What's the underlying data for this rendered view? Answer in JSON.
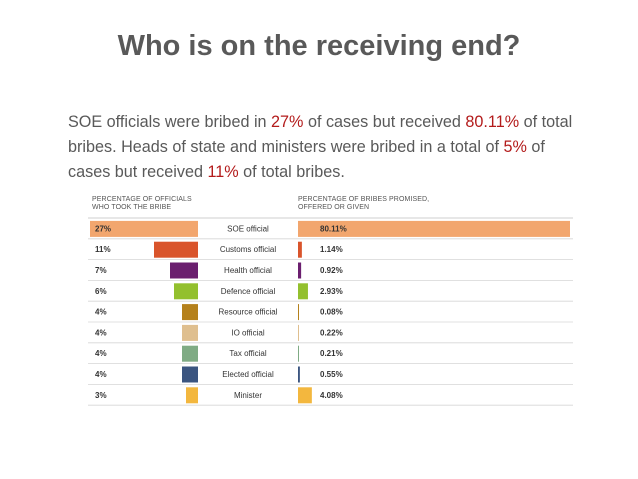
{
  "title": "Who is on the receiving end?",
  "paragraph": [
    {
      "text": "SOE officials were bribed in ",
      "hl": false
    },
    {
      "text": "27%",
      "hl": true
    },
    {
      "text": " of cases but received ",
      "hl": false
    },
    {
      "text": "80.11%",
      "hl": true
    },
    {
      "text": " of total bribes. Heads of state and ministers were bribed in a total of ",
      "hl": false
    },
    {
      "text": "5%",
      "hl": true
    },
    {
      "text": " of cases but received ",
      "hl": false
    },
    {
      "text": "11%",
      "hl": true
    },
    {
      "text": " of total bribes.",
      "hl": false
    }
  ],
  "highlight_color": "#b31b1b",
  "chart_data": {
    "type": "bar",
    "left_header": "PERCENTAGE OF OFFICIALS\nWHO TOOK THE BRIBE",
    "right_header": "PERCENTAGE OF BRIBES PROMISED,\nOFFERED OR GIVEN",
    "categories": [
      "SOE official",
      "Customs official",
      "Health official",
      "Defence official",
      "Resource official",
      "IO official",
      "Tax official",
      "Elected official",
      "Minister"
    ],
    "series": [
      {
        "values": [
          27,
          11,
          7,
          6,
          4,
          4,
          4,
          4,
          3
        ],
        "labels": [
          "27%",
          "11%",
          "7%",
          "6%",
          "4%",
          "4%",
          "4%",
          "4%",
          "3%"
        ]
      },
      {
        "values": [
          80.11,
          1.14,
          0.92,
          2.93,
          0.08,
          0.22,
          0.21,
          0.55,
          4.08
        ],
        "labels": [
          "80.11%",
          "1.14%",
          "0.92%",
          "2.93%",
          "0.08%",
          "0.22%",
          "0.21%",
          "0.55%",
          "4.08%"
        ]
      }
    ],
    "colors": [
      "#f2a66e",
      "#d9542b",
      "#6b1f6f",
      "#93c02e",
      "#b5811c",
      "#dfbf8f",
      "#7fab84",
      "#3b5580",
      "#f3b73e"
    ]
  }
}
